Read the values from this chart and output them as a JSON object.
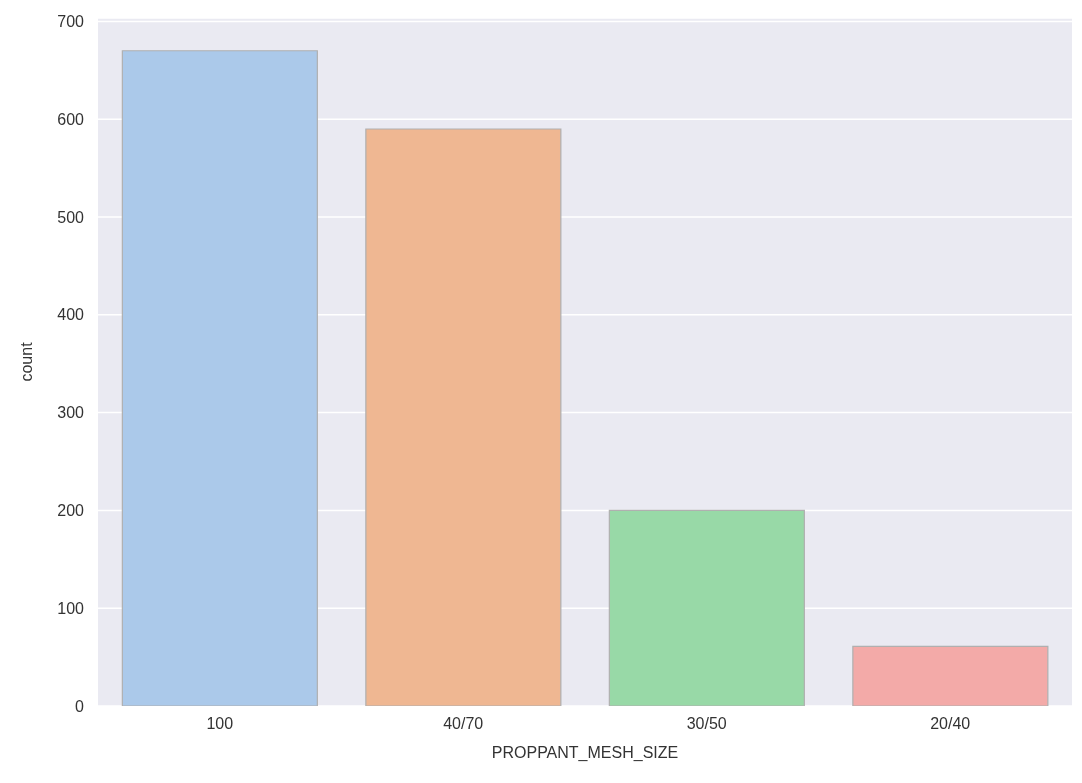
{
  "chart_data": {
    "type": "bar",
    "xlabel": "PROPPANT_MESH_SIZE",
    "ylabel": "count",
    "categories": [
      "100",
      "40/70",
      "30/50",
      "20/40"
    ],
    "values": [
      670,
      590,
      200,
      61
    ],
    "colors": [
      "#abc9ea",
      "#efb792",
      "#98d9a7",
      "#f3aaa8"
    ],
    "ylim": [
      0,
      703.5
    ],
    "yticks": [
      0,
      100,
      200,
      300,
      400,
      500,
      600,
      700
    ],
    "grid": "y"
  }
}
